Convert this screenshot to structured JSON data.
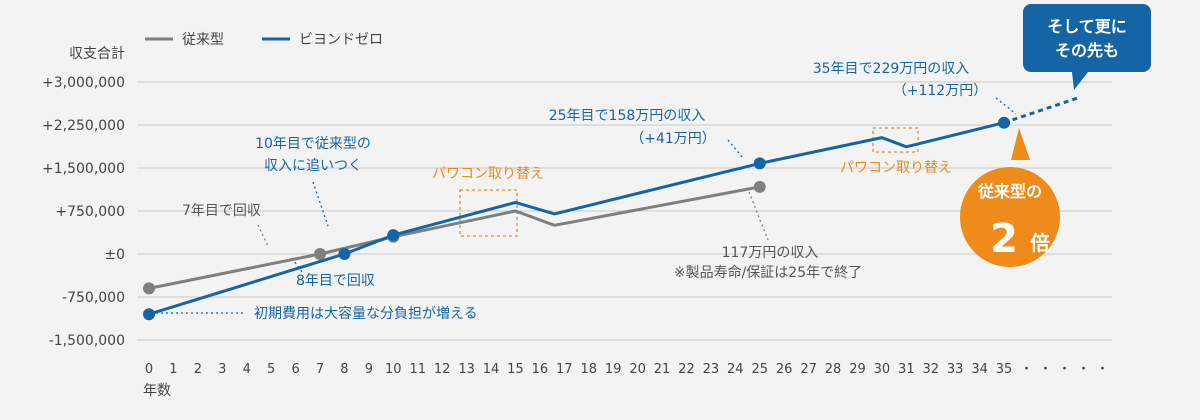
{
  "chart_data": {
    "type": "line",
    "ylabel": "収支合計",
    "xlabel": "年数",
    "ylim": [
      -1500000,
      3000000
    ],
    "y_ticks": [
      {
        "v": 3000000,
        "label": "+3,000,000"
      },
      {
        "v": 2250000,
        "label": "+2,250,000"
      },
      {
        "v": 1500000,
        "label": "+1,500,000"
      },
      {
        "v": 750000,
        "label": "+750,000"
      },
      {
        "v": 0,
        "label": "±0"
      },
      {
        "v": -750000,
        "label": "-750,000"
      },
      {
        "v": -1500000,
        "label": "-1,500,000"
      }
    ],
    "x_ticks": [
      "0",
      "1",
      "2",
      "3",
      "4",
      "5",
      "6",
      "7",
      "8",
      "9",
      "10",
      "11",
      "12",
      "13",
      "14",
      "15",
      "16",
      "17",
      "18",
      "19",
      "20",
      "21",
      "22",
      "23",
      "24",
      "25",
      "26",
      "27",
      "28",
      "29",
      "30",
      "31",
      "32",
      "33",
      "34",
      "35"
    ],
    "x_continuation": "・・・・・",
    "grid": true,
    "legend_position": "top-left",
    "series": [
      {
        "name": "従来型",
        "color": "#7f7f7f",
        "points": [
          [
            0,
            -600000
          ],
          [
            7,
            0
          ],
          [
            10,
            300000
          ],
          [
            15,
            750000
          ],
          [
            16.6,
            500000
          ],
          [
            25,
            1170000
          ]
        ],
        "markers": [
          [
            0,
            -600000
          ],
          [
            7,
            0
          ],
          [
            10,
            300000
          ],
          [
            25,
            1170000
          ]
        ]
      },
      {
        "name": "ビヨンドゼロ",
        "color": "#1565a6",
        "points": [
          [
            0,
            -1050000
          ],
          [
            8,
            0
          ],
          [
            10,
            330000
          ],
          [
            15,
            900000
          ],
          [
            16.6,
            700000
          ],
          [
            25,
            1580000
          ],
          [
            30,
            2030000
          ],
          [
            31,
            1870000
          ],
          [
            35,
            2290000
          ]
        ],
        "markers": [
          [
            0,
            -1050000
          ],
          [
            8,
            0
          ],
          [
            10,
            330000
          ],
          [
            25,
            1580000
          ],
          [
            35,
            2290000
          ]
        ],
        "projection": [
          [
            35,
            2290000
          ],
          [
            38,
            2720000
          ]
        ]
      }
    ],
    "annotations": {
      "gray_payback": "7年目で回収",
      "blue_payback": "8年目で回収",
      "catch_up_1": "10年目で従来型の",
      "catch_up_2": "収入に追いつく",
      "replace_1": "パワコン取り替え",
      "replace_2": "パワコン取り替え",
      "initial_cost": "初期費用は大容量な分負担が増える",
      "y25_blue_1": "25年目で158万円の収入",
      "y25_blue_2": "（+41万円）",
      "y25_gray_1": "117万円の収入",
      "y25_gray_2": "※製品寿命/保証は25年で終了",
      "y35_1": "35年目で229万円の収入",
      "y35_2": "（+112万円）",
      "callout_1": "そして更に",
      "callout_2": "その先も",
      "badge_1": "従来型の",
      "badge_2": "2",
      "badge_3": "倍"
    }
  },
  "colors": {
    "gray": "#7f7f7f",
    "blue": "#1565a6",
    "orange": "#ee8b1a",
    "grid": "#c8c8c8"
  }
}
